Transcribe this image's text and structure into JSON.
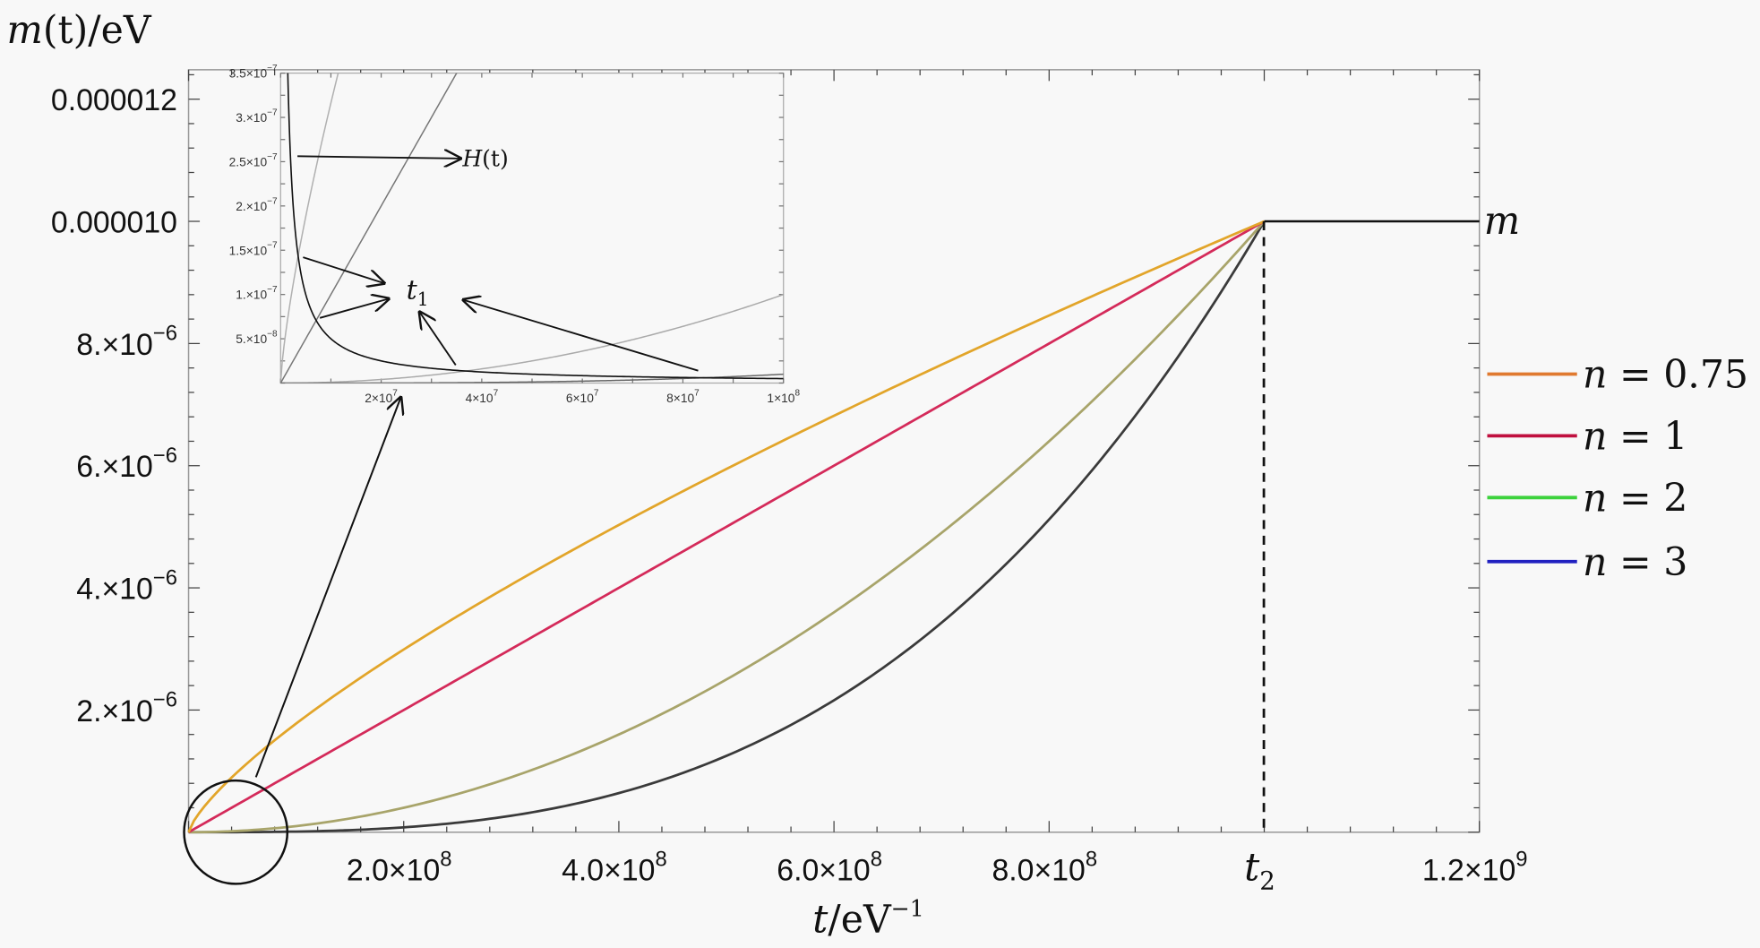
{
  "chart_data": [
    {
      "type": "line",
      "ylabel": {
        "var": "m",
        "arg": "(t)",
        "unit": "/eV"
      },
      "xlabel": {
        "var": "t",
        "unit": "/eV",
        "exp": "−1"
      },
      "xlim": [
        0,
        1200000000.0
      ],
      "ylim": [
        0,
        1.25e-05
      ],
      "grid": false,
      "legend_position": "right",
      "y_ticks": [
        {
          "value": 1.2e-05,
          "base": "0.000012",
          "exp": ""
        },
        {
          "value": 1e-05,
          "base": "0.000010",
          "exp": ""
        },
        {
          "value": 8e-06,
          "base": "8.×10",
          "exp": "−6"
        },
        {
          "value": 6e-06,
          "base": "6.×10",
          "exp": "−6"
        },
        {
          "value": 4e-06,
          "base": "4.×10",
          "exp": "−6"
        },
        {
          "value": 2e-06,
          "base": "2.×10",
          "exp": "−6"
        }
      ],
      "x_ticks": [
        {
          "value": 200000000.0,
          "base": "2.0×10",
          "exp": "8"
        },
        {
          "value": 400000000.0,
          "base": "4.0×10",
          "exp": "8"
        },
        {
          "value": 600000000.0,
          "base": "6.0×10",
          "exp": "8"
        },
        {
          "value": 800000000.0,
          "base": "8.0×10",
          "exp": "8"
        },
        {
          "value": 1000000000.0,
          "base": "t",
          "exp": "2",
          "italic": true
        },
        {
          "value": 1200000000.0,
          "base": "1.2×10",
          "exp": "9"
        }
      ],
      "plateau_label": "m",
      "plateau_value": 1e-05,
      "t2": 1000000000.0,
      "x": [
        0,
        100000000.0,
        200000000.0,
        300000000.0,
        400000000.0,
        500000000.0,
        600000000.0,
        700000000.0,
        800000000.0,
        900000000.0,
        1000000000.0,
        1100000000.0,
        1200000000.0
      ],
      "series": [
        {
          "name": "n = 0.75",
          "n": 0.75,
          "legend_color": "#e07a30",
          "line_color": "#e2a52a",
          "y": [
            0,
            1.778e-06,
            2.991e-06,
            4.054e-06,
            5.03e-06,
            5.946e-06,
            6.817e-06,
            7.653e-06,
            8.459e-06,
            9.24e-06,
            1e-05,
            1e-05,
            1e-05
          ]
        },
        {
          "name": "n = 1",
          "n": 1,
          "legend_color": "#c0103f",
          "line_color": "#d42a5a",
          "y": [
            0,
            1e-06,
            2e-06,
            3e-06,
            4e-06,
            5e-06,
            6e-06,
            7e-06,
            8e-06,
            9e-06,
            1e-05,
            1e-05,
            1e-05
          ]
        },
        {
          "name": "n = 2",
          "n": 2,
          "legend_color": "#3cd23c",
          "line_color": "#a8a46a",
          "y": [
            0,
            1e-07,
            4e-07,
            9e-07,
            1.6e-06,
            2.5e-06,
            3.6e-06,
            4.9e-06,
            6.4e-06,
            8.1e-06,
            1e-05,
            1e-05,
            1e-05
          ]
        },
        {
          "name": "n = 3",
          "n": 3,
          "legend_color": "#2020c0",
          "line_color": "#3a3a3a",
          "y": [
            0,
            1e-08,
            8e-08,
            2.7e-07,
            6.4e-07,
            1.25e-06,
            2.16e-06,
            3.43e-06,
            5.12e-06,
            7.29e-06,
            1e-05,
            1e-05,
            1e-05
          ]
        }
      ],
      "legend": [
        {
          "var": "n",
          "eq": " = 0.75"
        },
        {
          "var": "n",
          "eq": " = 1"
        },
        {
          "var": "n",
          "eq": " = 2"
        },
        {
          "var": "n",
          "eq": " = 3"
        }
      ]
    },
    {
      "type": "line",
      "role": "inset",
      "xlim": [
        0,
        100000000.0
      ],
      "ylim": [
        0,
        3.5e-07
      ],
      "y_ticks": [
        {
          "value": 3.5e-07,
          "base": "3.5×10",
          "exp": "−7"
        },
        {
          "value": 3e-07,
          "base": "3.×10",
          "exp": "−7"
        },
        {
          "value": 2.5e-07,
          "base": "2.5×10",
          "exp": "−7"
        },
        {
          "value": 2e-07,
          "base": "2.×10",
          "exp": "−7"
        },
        {
          "value": 1.5e-07,
          "base": "1.5×10",
          "exp": "−7"
        },
        {
          "value": 1e-07,
          "base": "1.×10",
          "exp": "−7"
        },
        {
          "value": 5e-08,
          "base": "5.×10",
          "exp": "−8"
        }
      ],
      "x_ticks": [
        {
          "value": 20000000.0,
          "base": "2×10",
          "exp": "7"
        },
        {
          "value": 40000000.0,
          "base": "4×10",
          "exp": "7"
        },
        {
          "value": 60000000.0,
          "base": "6×10",
          "exp": "7"
        },
        {
          "value": 80000000.0,
          "base": "8×10",
          "exp": "7"
        },
        {
          "value": 100000000.0,
          "base": "1×10",
          "exp": "8"
        }
      ],
      "hubble": {
        "label_var": "H",
        "label_arg": "(t)",
        "t": [
          5000000.0,
          10000000.0,
          20000000.0,
          40000000.0,
          60000000.0,
          80000000.0,
          100000000.0
        ],
        "y": [
          1e-07,
          5e-08,
          2.5e-08,
          1.25e-08,
          8.3e-09,
          6.25e-09,
          5e-09
        ]
      },
      "crossing_label": {
        "var": "t",
        "sub": "1"
      }
    }
  ]
}
